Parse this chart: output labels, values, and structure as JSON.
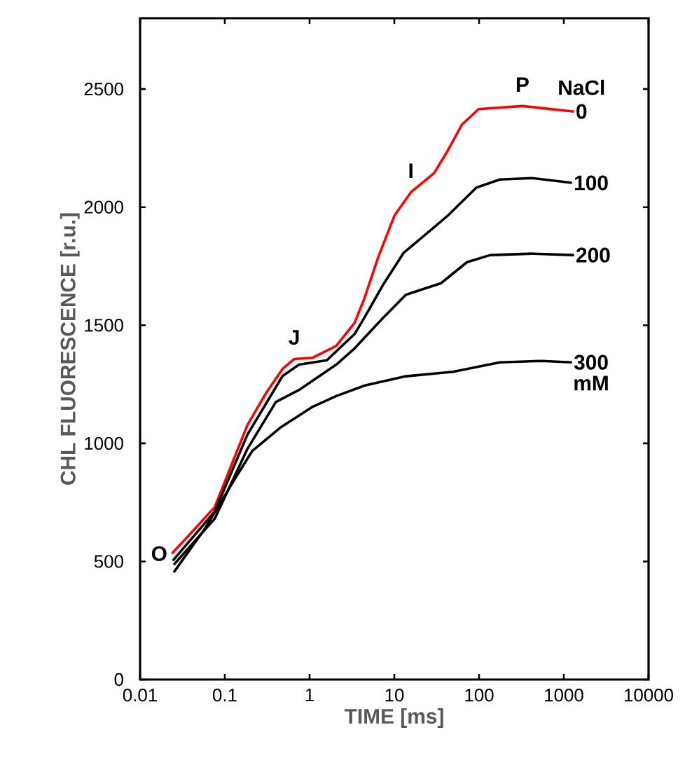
{
  "chart_data": {
    "type": "line",
    "xlabel": "TIME [ms]",
    "ylabel": "CHL FLUORESCENCE [r.u.]",
    "legend_title": "NaCl",
    "log": "x",
    "line_style": "solid",
    "xlim": [
      0.01,
      10000
    ],
    "ylim": [
      0,
      2800
    ],
    "xticks": [
      0.01,
      0.1,
      1,
      10,
      100,
      1000,
      10000
    ],
    "yticks": [
      0,
      500,
      1000,
      1500,
      2000,
      2500
    ],
    "annotations": [
      {
        "text": "O",
        "x": 0.0237,
        "y": 533
      },
      {
        "text": "J",
        "x": 0.66,
        "y": 1357
      },
      {
        "text": "I",
        "x": 15.7,
        "y": 2063
      },
      {
        "text": "P",
        "x": 325,
        "y": 2428
      },
      "mM"
    ],
    "series": [
      {
        "name": "0",
        "color": "#ff0000",
        "x": [
          0.0237,
          0.0404,
          0.076,
          0.111,
          0.185,
          0.308,
          0.48,
          0.66,
          1.08,
          2.06,
          3.4,
          4.4,
          6.46,
          10.1,
          15.7,
          29.5,
          43,
          63,
          99,
          325,
          1320
        ],
        "values": [
          533,
          622,
          730,
          878,
          1078,
          1214,
          1315,
          1357,
          1362,
          1412,
          1510,
          1610,
          1788,
          1966,
          2063,
          2144,
          2241,
          2350,
          2415,
          2428,
          2405
        ]
      },
      {
        "name": "100",
        "color": "#000000",
        "x": [
          0.0243,
          0.076,
          0.185,
          0.48,
          0.75,
          1.6,
          3.4,
          4.4,
          7.3,
          12.9,
          29.5,
          43,
          93,
          176,
          420,
          1250
        ],
        "values": [
          503,
          711,
          1037,
          1285,
          1333,
          1352,
          1463,
          1530,
          1669,
          1807,
          1915,
          1965,
          2083,
          2117,
          2123,
          2103
        ]
      },
      {
        "name": "200",
        "color": "#000000",
        "x": [
          0.025,
          0.076,
          0.185,
          0.4,
          0.75,
          2.06,
          3.4,
          7.3,
          13.7,
          35.6,
          72,
          135,
          420,
          1320
        ],
        "values": [
          486,
          681,
          977,
          1175,
          1226,
          1333,
          1402,
          1530,
          1629,
          1678,
          1767,
          1797,
          1803,
          1797
        ]
      },
      {
        "name": "300",
        "color": "#000000",
        "x": [
          0.025,
          0.059,
          0.126,
          0.21,
          0.45,
          1.09,
          2.06,
          4.4,
          13.7,
          49,
          176,
          550,
          1250
        ],
        "values": [
          454,
          642,
          839,
          967,
          1066,
          1155,
          1200,
          1244,
          1284,
          1303,
          1343,
          1349,
          1343
        ]
      }
    ]
  }
}
